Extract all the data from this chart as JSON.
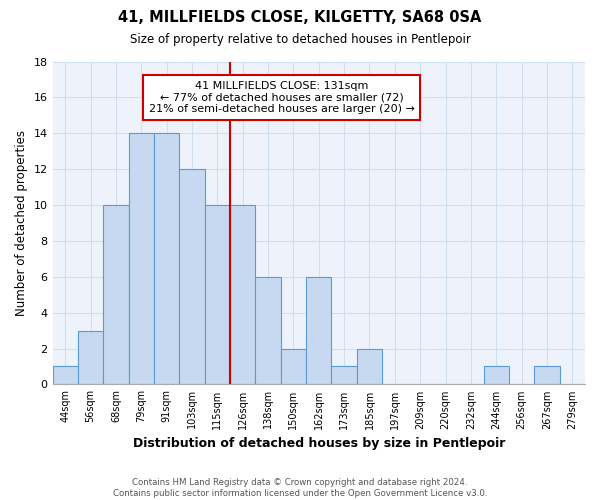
{
  "title": "41, MILLFIELDS CLOSE, KILGETTY, SA68 0SA",
  "subtitle": "Size of property relative to detached houses in Pentlepoir",
  "xlabel": "Distribution of detached houses by size in Pentlepoir",
  "ylabel": "Number of detached properties",
  "footer_line1": "Contains HM Land Registry data © Crown copyright and database right 2024.",
  "footer_line2": "Contains public sector information licensed under the Open Government Licence v3.0.",
  "bin_labels": [
    "44sqm",
    "56sqm",
    "68sqm",
    "79sqm",
    "91sqm",
    "103sqm",
    "115sqm",
    "126sqm",
    "138sqm",
    "150sqm",
    "162sqm",
    "173sqm",
    "185sqm",
    "197sqm",
    "209sqm",
    "220sqm",
    "232sqm",
    "244sqm",
    "256sqm",
    "267sqm",
    "279sqm"
  ],
  "bar_heights": [
    1,
    3,
    10,
    14,
    14,
    12,
    10,
    10,
    6,
    2,
    6,
    1,
    2,
    0,
    0,
    0,
    0,
    1,
    0,
    1,
    0
  ],
  "bar_color": "#c6d9f0",
  "bar_edge_color": "#5b9bd5",
  "highlight_bin_index": 7,
  "highlight_line_color": "#cc0000",
  "annotation_title": "41 MILLFIELDS CLOSE: 131sqm",
  "annotation_line1": "← 77% of detached houses are smaller (72)",
  "annotation_line2": "21% of semi-detached houses are larger (20) →",
  "annotation_box_edge_color": "#cc0000",
  "ylim": [
    0,
    18
  ],
  "yticks": [
    0,
    2,
    4,
    6,
    8,
    10,
    12,
    14,
    16,
    18
  ],
  "grid_color": "#d0dff0",
  "background_color": "#eef3fb"
}
